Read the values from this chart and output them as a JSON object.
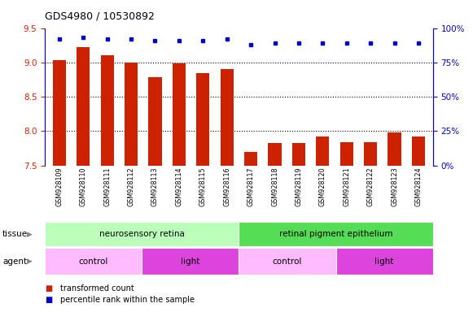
{
  "title": "GDS4980 / 10530892",
  "samples": [
    "GSM928109",
    "GSM928110",
    "GSM928111",
    "GSM928112",
    "GSM928113",
    "GSM928114",
    "GSM928115",
    "GSM928116",
    "GSM928117",
    "GSM928118",
    "GSM928119",
    "GSM928120",
    "GSM928121",
    "GSM928122",
    "GSM928123",
    "GSM928124"
  ],
  "bar_values": [
    9.03,
    9.22,
    9.1,
    9.0,
    8.78,
    8.98,
    8.84,
    8.9,
    7.7,
    7.82,
    7.82,
    7.92,
    7.84,
    7.84,
    7.98,
    7.92
  ],
  "dot_values": [
    92,
    93,
    92,
    92,
    91,
    91,
    91,
    92,
    88,
    89,
    89,
    89,
    89,
    89,
    89,
    89
  ],
  "ylim_left": [
    7.5,
    9.5
  ],
  "ylim_right": [
    0,
    100
  ],
  "yticks_left": [
    7.5,
    8.0,
    8.5,
    9.0,
    9.5
  ],
  "yticks_right": [
    0,
    25,
    50,
    75,
    100
  ],
  "ytick_labels_right": [
    "0%",
    "25%",
    "50%",
    "75%",
    "100%"
  ],
  "bar_color": "#cc2200",
  "dot_color": "#0000cc",
  "tissue_groups": [
    {
      "label": "neurosensory retina",
      "start": 0,
      "end": 8,
      "color": "#bbffbb"
    },
    {
      "label": "retinal pigment epithelium",
      "start": 8,
      "end": 16,
      "color": "#55dd55"
    }
  ],
  "agent_groups": [
    {
      "label": "control",
      "start": 0,
      "end": 4,
      "color": "#ffbbff"
    },
    {
      "label": "light",
      "start": 4,
      "end": 8,
      "color": "#dd44dd"
    },
    {
      "label": "control",
      "start": 8,
      "end": 12,
      "color": "#ffbbff"
    },
    {
      "label": "light",
      "start": 12,
      "end": 16,
      "color": "#dd44dd"
    }
  ],
  "legend_items": [
    {
      "label": "transformed count",
      "color": "#cc2200"
    },
    {
      "label": "percentile rank within the sample",
      "color": "#0000cc"
    }
  ],
  "label_tissue": "tissue",
  "label_agent": "agent",
  "xtick_bg": "#c8c8c8",
  "fig_width": 5.81,
  "fig_height": 3.84,
  "dpi": 100
}
